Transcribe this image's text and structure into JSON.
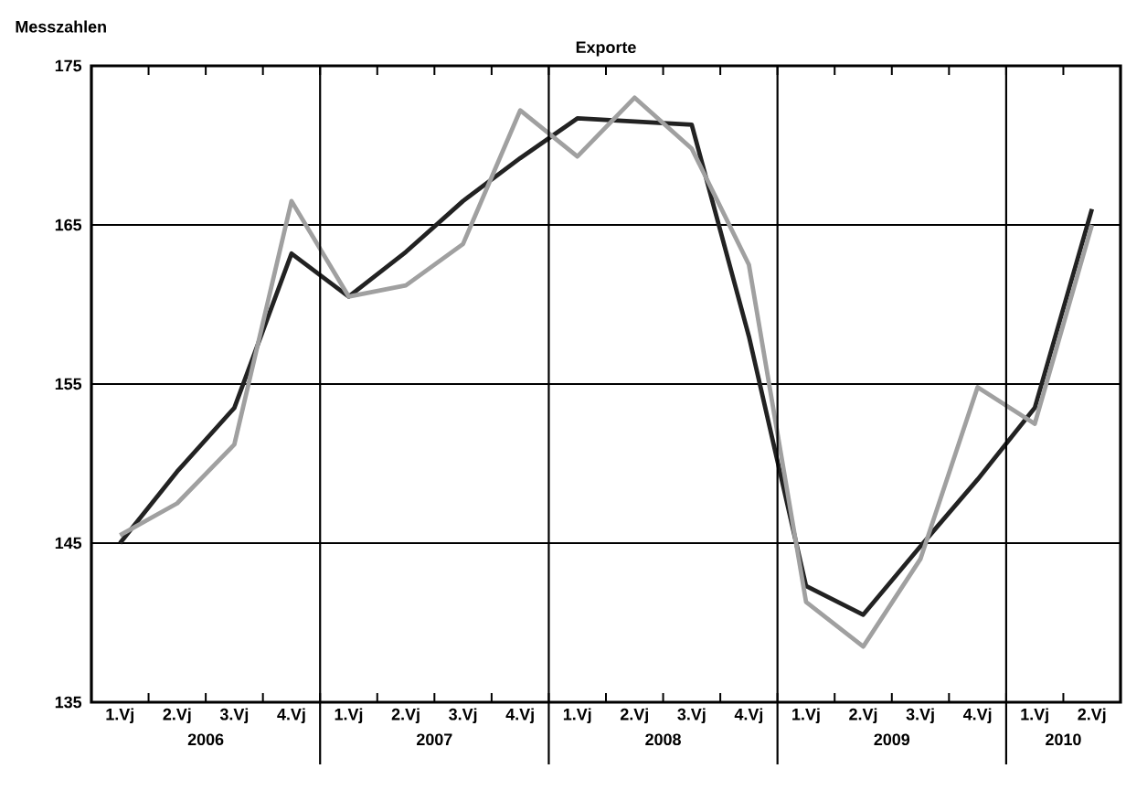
{
  "chart_data": {
    "type": "line",
    "title": "Exporte",
    "ylabel": "Messzahlen",
    "categories": [
      "1.Vj",
      "2.Vj",
      "3.Vj",
      "4.Vj",
      "1.Vj",
      "2.Vj",
      "3.Vj",
      "4.Vj",
      "1.Vj",
      "2.Vj",
      "3.Vj",
      "4.Vj",
      "1.Vj",
      "2.Vj",
      "3.Vj",
      "4.Vj",
      "1.Vj",
      "2.Vj"
    ],
    "annotations": [
      "2006",
      "2007",
      "2008",
      "2009",
      "2010"
    ],
    "series": [
      {
        "color": "#222222",
        "values": [
          145,
          149.5,
          153.5,
          163.2,
          160.5,
          163.3,
          166.5,
          169.2,
          171.7,
          171.5,
          171.3,
          158,
          142.3,
          140.5,
          144.8,
          149,
          153.5,
          166
        ]
      },
      {
        "color": "#a0a0a0",
        "values": [
          145.5,
          147.5,
          151.2,
          166.5,
          160.5,
          161.2,
          163.8,
          172.2,
          169.3,
          173,
          169.8,
          162.5,
          141.3,
          138.5,
          144,
          154.8,
          152.5,
          165
        ]
      }
    ],
    "ylim": [
      135,
      175
    ],
    "yticks": [
      135,
      145,
      155,
      165,
      175
    ],
    "grid": "y"
  }
}
